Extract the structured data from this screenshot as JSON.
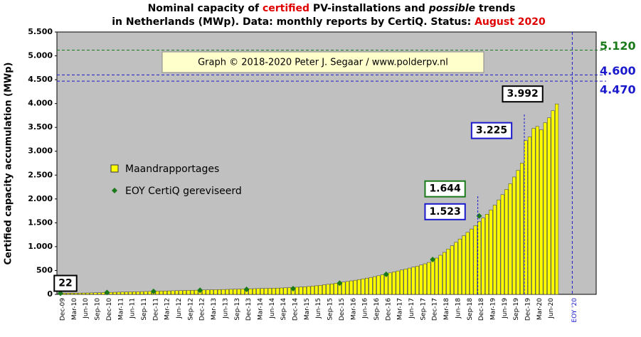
{
  "chart_data": {
    "type": "bar",
    "title_lines": [
      [
        "Nominal capacity of ",
        "certified",
        " PV-installations and ",
        "possible",
        " trends"
      ],
      [
        "in Netherlands (MWp). Data: monthly reports by CertiQ. Status: ",
        "August 2020"
      ]
    ],
    "y_label": "Certified capacity accumulation (MWp)",
    "copyright": "Graph © 2018-2020 Peter J. Segaar / www.polderpv.nl",
    "ylim": [
      0,
      5500
    ],
    "yticks": [
      0,
      {
        "value": 500,
        "label": "500"
      },
      {
        "value": 1000,
        "label": "1.000"
      },
      {
        "value": 1500,
        "label": "1.500"
      },
      {
        "value": 2000,
        "label": "2.000"
      },
      {
        "value": 2500,
        "label": "2.500"
      },
      {
        "value": 3000,
        "label": "3.000"
      },
      {
        "value": 3500,
        "label": "3.500"
      },
      {
        "value": 4000,
        "label": "4.000"
      },
      {
        "value": 4500,
        "label": "4.500"
      },
      {
        "value": 5000,
        "label": "5.000"
      },
      {
        "value": 5500,
        "label": "5.500"
      }
    ],
    "categories": [
      "Dec-09",
      null,
      null,
      "Mar-10",
      null,
      null,
      "Jun-10",
      null,
      null,
      "Sep-10",
      null,
      null,
      "Dec-10",
      null,
      null,
      "Mar-11",
      null,
      null,
      "Jun-11",
      null,
      null,
      "Sep-11",
      null,
      null,
      "Dec-11",
      null,
      null,
      "Mar-12",
      null,
      null,
      "Jun-12",
      null,
      null,
      "Sep-12",
      null,
      null,
      "Dec-12",
      null,
      null,
      "Mar-13",
      null,
      null,
      "Jun-13",
      null,
      null,
      "Sep-13",
      null,
      null,
      "Dec-13",
      null,
      null,
      "Mar-14",
      null,
      null,
      "Jun-14",
      null,
      null,
      "Sep-14",
      null,
      null,
      "Dec-14",
      null,
      null,
      "Mar-15",
      null,
      null,
      "Jun-15",
      null,
      null,
      "Sep-15",
      null,
      null,
      "Dec-15",
      null,
      null,
      "Mar-16",
      null,
      null,
      "Jun-16",
      null,
      null,
      "Sep-16",
      null,
      null,
      "Dec-16",
      null,
      null,
      "Mar-17",
      null,
      null,
      "Jun-17",
      null,
      null,
      "Sep-17",
      null,
      null,
      "Dec-17",
      null,
      null,
      "Mar-18",
      null,
      null,
      "Jun-18",
      null,
      null,
      "Sep-18",
      null,
      null,
      "Dec-18",
      null,
      null,
      "Mar-19",
      null,
      null,
      "Jun-19",
      null,
      null,
      "Sep-19",
      null,
      null,
      "Dec-19",
      null,
      null,
      "Mar-20",
      null,
      null,
      "Jun-20",
      null,
      null,
      null,
      null,
      null,
      "EOY '20"
    ],
    "series": [
      {
        "name": "Maandrapportages",
        "color": "#ffff00",
        "values": [
          22,
          23,
          24,
          25,
          26,
          27,
          28,
          29,
          31,
          33,
          35,
          37,
          40,
          42,
          44,
          46,
          48,
          50,
          52,
          54,
          56,
          58,
          60,
          62,
          65,
          67,
          69,
          71,
          73,
          75,
          77,
          79,
          81,
          83,
          85,
          87,
          90,
          92,
          94,
          96,
          98,
          100,
          102,
          104,
          106,
          108,
          110,
          112,
          115,
          117,
          119,
          121,
          123,
          125,
          127,
          129,
          131,
          134,
          137,
          140,
          145,
          150,
          155,
          160,
          165,
          172,
          180,
          190,
          200,
          210,
          220,
          232,
          245,
          258,
          270,
          283,
          296,
          310,
          325,
          340,
          355,
          372,
          390,
          410,
          430,
          450,
          470,
          490,
          510,
          530,
          550,
          570,
          590,
          615,
          640,
          670,
          700,
          760,
          820,
          880,
          950,
          1020,
          1090,
          1160,
          1230,
          1300,
          1370,
          1440,
          1523,
          1600,
          1680,
          1770,
          1870,
          1980,
          2090,
          2200,
          2320,
          2460,
          2600,
          2750,
          3225,
          3300,
          3480,
          3520,
          3450,
          3600,
          3700,
          3850,
          3992,
          null,
          null,
          null,
          null
        ],
        "value_labels": [
          "22",
          null,
          null,
          null,
          null,
          null,
          null,
          null,
          null,
          null,
          null,
          null,
          null,
          null,
          null,
          null,
          null,
          null,
          null,
          null,
          null,
          null,
          null,
          null,
          null,
          null,
          null,
          null,
          null,
          null,
          null,
          null,
          null,
          null,
          null,
          null,
          null,
          null,
          null,
          null,
          null,
          null,
          null,
          null,
          null,
          null,
          null,
          null,
          null,
          null,
          null,
          null,
          null,
          null,
          null,
          null,
          null,
          null,
          null,
          null,
          null,
          null,
          null,
          null,
          null,
          null,
          null,
          null,
          null,
          null,
          null,
          null,
          null,
          null,
          null,
          null,
          null,
          null,
          null,
          null,
          null,
          null,
          null,
          null,
          null,
          null,
          null,
          null,
          null,
          null,
          null,
          null,
          null,
          null,
          null,
          null,
          null,
          null,
          null,
          null,
          null,
          null,
          null,
          null,
          null,
          null,
          null,
          null,
          "1.523",
          null,
          null,
          null,
          null,
          null,
          null,
          null,
          null,
          null,
          null,
          null,
          "3.225",
          null,
          null,
          null,
          null,
          null,
          null,
          null,
          "3.992",
          null,
          null,
          null,
          null
        ]
      },
      {
        "name": "EOY CertiQ gereviseerd",
        "color": "#1a7a1a",
        "values": [
          22,
          null,
          null,
          null,
          null,
          null,
          null,
          null,
          null,
          null,
          null,
          null,
          40,
          null,
          null,
          null,
          null,
          null,
          null,
          null,
          null,
          null,
          null,
          null,
          62,
          null,
          null,
          null,
          null,
          null,
          null,
          null,
          null,
          null,
          null,
          null,
          85,
          null,
          null,
          null,
          null,
          null,
          null,
          null,
          null,
          null,
          null,
          null,
          105,
          null,
          null,
          null,
          null,
          null,
          null,
          null,
          null,
          null,
          null,
          null,
          120,
          null,
          null,
          null,
          null,
          null,
          null,
          null,
          null,
          null,
          null,
          null,
          235,
          null,
          null,
          null,
          null,
          null,
          null,
          null,
          null,
          null,
          null,
          null,
          420,
          null,
          null,
          null,
          null,
          null,
          null,
          null,
          null,
          null,
          null,
          null,
          730,
          null,
          null,
          null,
          null,
          null,
          null,
          null,
          null,
          null,
          null,
          null,
          1644,
          null,
          null,
          null,
          null,
          null,
          null,
          null,
          null,
          null,
          null,
          null,
          null,
          null,
          null,
          null,
          null,
          null,
          null,
          null,
          null,
          null,
          null,
          null,
          null
        ],
        "value_labels": [
          null,
          null,
          null,
          null,
          null,
          null,
          null,
          null,
          null,
          null,
          null,
          null,
          null,
          null,
          null,
          null,
          null,
          null,
          null,
          null,
          null,
          null,
          null,
          null,
          null,
          null,
          null,
          null,
          null,
          null,
          null,
          null,
          null,
          null,
          null,
          null,
          null,
          null,
          null,
          null,
          null,
          null,
          null,
          null,
          null,
          null,
          null,
          null,
          null,
          null,
          null,
          null,
          null,
          null,
          null,
          null,
          null,
          null,
          null,
          null,
          null,
          null,
          null,
          null,
          null,
          null,
          null,
          null,
          null,
          null,
          null,
          null,
          null,
          null,
          null,
          null,
          null,
          null,
          null,
          null,
          null,
          null,
          null,
          null,
          null,
          null,
          null,
          null,
          null,
          null,
          null,
          null,
          null,
          null,
          null,
          null,
          null,
          null,
          null,
          null,
          null,
          null,
          null,
          null,
          null,
          null,
          null,
          null,
          "1.644",
          null,
          null,
          null,
          null,
          null,
          null,
          null,
          null,
          null,
          null,
          null,
          null,
          null,
          null,
          null,
          null,
          null,
          null,
          null,
          null,
          null,
          null,
          null,
          null
        ]
      }
    ],
    "reference_lines": [
      {
        "value": 5120,
        "label": "5.120",
        "color": "#1a7a1a"
      },
      {
        "value": 4600,
        "label": "4.600",
        "color": "#1a1acc"
      },
      {
        "value": 4470,
        "label": "4.470",
        "color": "#1a1acc"
      }
    ]
  }
}
